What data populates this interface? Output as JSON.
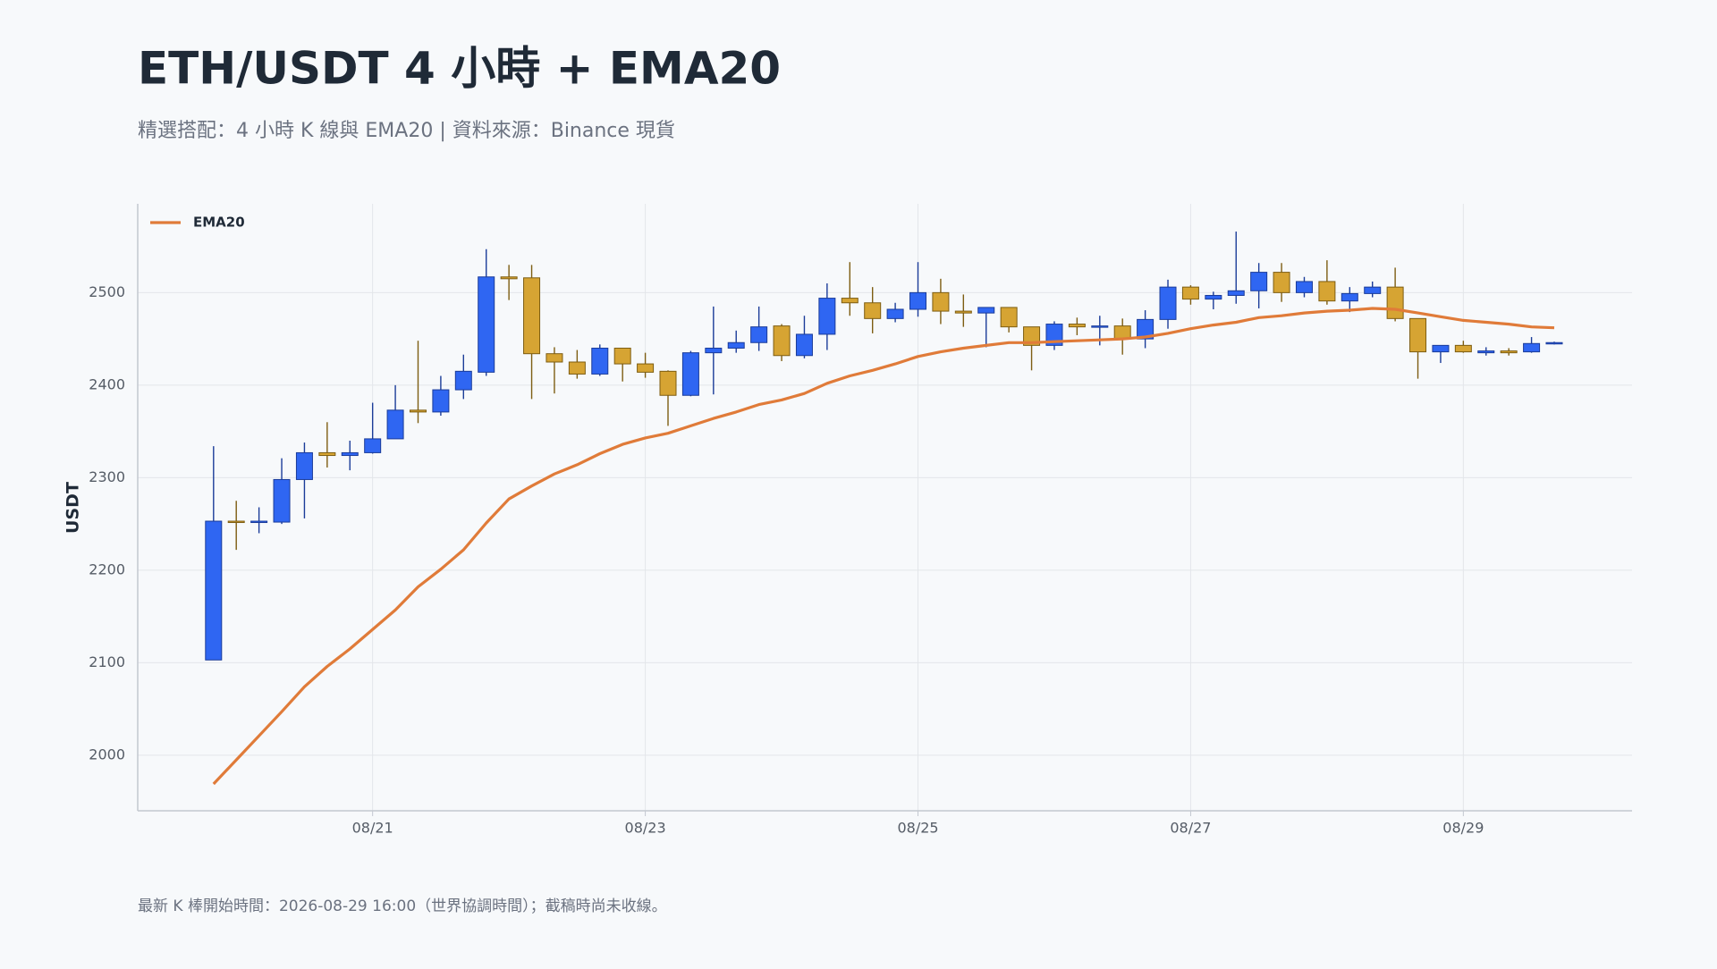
{
  "chart_data": {
    "type": "candlestick",
    "title": "ETH/USDT 4 小時 + EMA20",
    "subtitle": "精選搭配：4 小時 K 線與 EMA20 | 資料來源：Binance 現貨",
    "y_label": "USDT",
    "footnote": "最新 K 棒開始時間：2026-08-29 16:00（世界協調時間）；截稿時尚未收線。",
    "categories": [
      null,
      null,
      null,
      null,
      null,
      null,
      null,
      "08/21",
      null,
      null,
      null,
      null,
      null,
      null,
      null,
      null,
      null,
      null,
      null,
      "08/23",
      null,
      null,
      null,
      null,
      null,
      null,
      null,
      null,
      null,
      null,
      null,
      "08/25",
      null,
      null,
      null,
      null,
      null,
      null,
      null,
      null,
      null,
      null,
      null,
      "08/27",
      null,
      null,
      null,
      null,
      null,
      null,
      null,
      null,
      null,
      null,
      null,
      "08/29",
      null,
      null,
      null,
      null
    ],
    "candles": {
      "up_color": "#2f66f2",
      "down_color": "#d6a433",
      "open": [
        2103,
        2253,
        2252,
        2252,
        2298,
        2327,
        2324,
        2327,
        2342,
        2373,
        2371,
        2395,
        2414,
        2517,
        2516,
        2434,
        2425,
        2412,
        2440,
        2423,
        2415,
        2389,
        2435,
        2440,
        2446,
        2464,
        2432,
        2455,
        2494,
        2489,
        2472,
        2482,
        2500,
        2480,
        2478,
        2484,
        2463,
        2443,
        2466,
        2463,
        2464,
        2450,
        2471,
        2506,
        2493,
        2497,
        2502,
        2522,
        2500,
        2512,
        2491,
        2499,
        2506,
        2472,
        2436,
        2443,
        2435,
        2437,
        2436,
        2445
      ],
      "high": [
        2334,
        2275,
        2268,
        2321,
        2338,
        2360,
        2340,
        2381,
        2400,
        2448,
        2410,
        2433,
        2547,
        2530,
        2530,
        2441,
        2438,
        2444,
        2440,
        2435,
        2416,
        2437,
        2485,
        2459,
        2485,
        2466,
        2475,
        2510,
        2533,
        2506,
        2489,
        2533,
        2515,
        2498,
        2484,
        2484,
        2463,
        2469,
        2473,
        2475,
        2472,
        2481,
        2514,
        2508,
        2501,
        2566,
        2532,
        2532,
        2517,
        2535,
        2506,
        2512,
        2527,
        2472,
        2443,
        2448,
        2441,
        2440,
        2452,
        2447
      ],
      "low": [
        2103,
        2222,
        2240,
        2250,
        2256,
        2311,
        2308,
        2326,
        2342,
        2359,
        2367,
        2385,
        2410,
        2492,
        2385,
        2391,
        2407,
        2410,
        2404,
        2408,
        2356,
        2388,
        2390,
        2435,
        2437,
        2426,
        2429,
        2438,
        2475,
        2456,
        2468,
        2474,
        2466,
        2463,
        2441,
        2457,
        2416,
        2438,
        2454,
        2443,
        2433,
        2440,
        2461,
        2487,
        2482,
        2488,
        2483,
        2490,
        2495,
        2487,
        2479,
        2495,
        2469,
        2407,
        2424,
        2435,
        2432,
        2432,
        2435,
        2444
      ],
      "close": [
        2253,
        2252,
        2253,
        2298,
        2327,
        2324,
        2327,
        2342,
        2373,
        2371,
        2395,
        2415,
        2517,
        2515,
        2434,
        2425,
        2412,
        2440,
        2423,
        2414,
        2389,
        2435,
        2440,
        2446,
        2463,
        2432,
        2455,
        2494,
        2489,
        2472,
        2482,
        2500,
        2480,
        2478,
        2484,
        2463,
        2443,
        2466,
        2463,
        2464,
        2450,
        2471,
        2506,
        2493,
        2497,
        2502,
        2522,
        2500,
        2512,
        2491,
        2499,
        2506,
        2472,
        2436,
        2443,
        2436,
        2437,
        2435,
        2445,
        2446
      ]
    },
    "series": [
      {
        "name": "EMA20",
        "color": "#e07b39",
        "values": [
          1969,
          1995,
          2021,
          2047,
          2074,
          2096,
          2115,
          2136,
          2157,
          2182,
          2201,
          2222,
          2251,
          2277,
          2291,
          2304,
          2314,
          2326,
          2336,
          2343,
          2348,
          2356,
          2364,
          2371,
          2379,
          2384,
          2391,
          2402,
          2410,
          2416,
          2423,
          2431,
          2436,
          2440,
          2443,
          2446,
          2446,
          2447,
          2448,
          2449,
          2450,
          2452,
          2456,
          2461,
          2465,
          2468,
          2473,
          2475,
          2478,
          2480,
          2481,
          2483,
          2482,
          2478,
          2474,
          2470,
          2468,
          2466,
          2463,
          2462
        ]
      }
    ],
    "ylim": [
      1940,
      2596
    ],
    "yticks": [
      2000,
      2100,
      2200,
      2300,
      2400,
      2500
    ],
    "grid": true,
    "legend": "upper left"
  }
}
